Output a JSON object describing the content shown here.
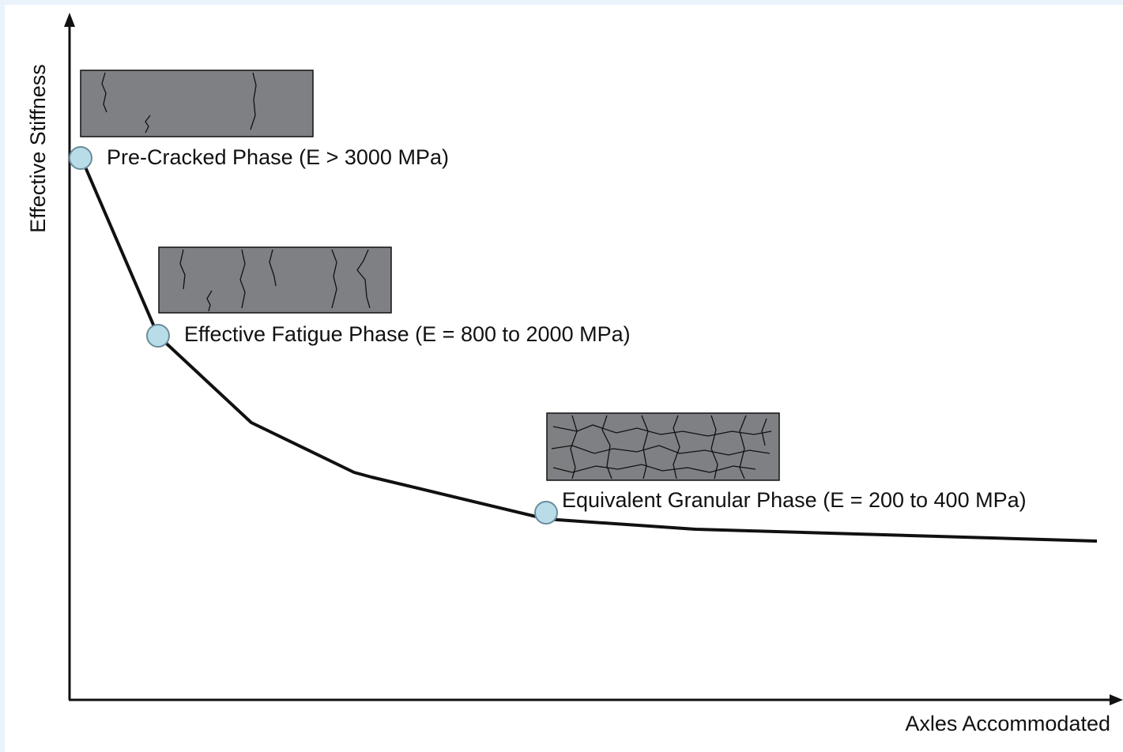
{
  "axes": {
    "y_label": "Effective Stiffness",
    "x_label": "Axles Accommodated"
  },
  "phases": [
    {
      "label": "Pre-Cracked Phase (E > 3000 MPa)"
    },
    {
      "label": "Effective Fatigue Phase (E = 800 to 2000 MPa)"
    },
    {
      "label": "Equivalent Granular Phase (E = 200 to 400 MPa)"
    }
  ]
}
